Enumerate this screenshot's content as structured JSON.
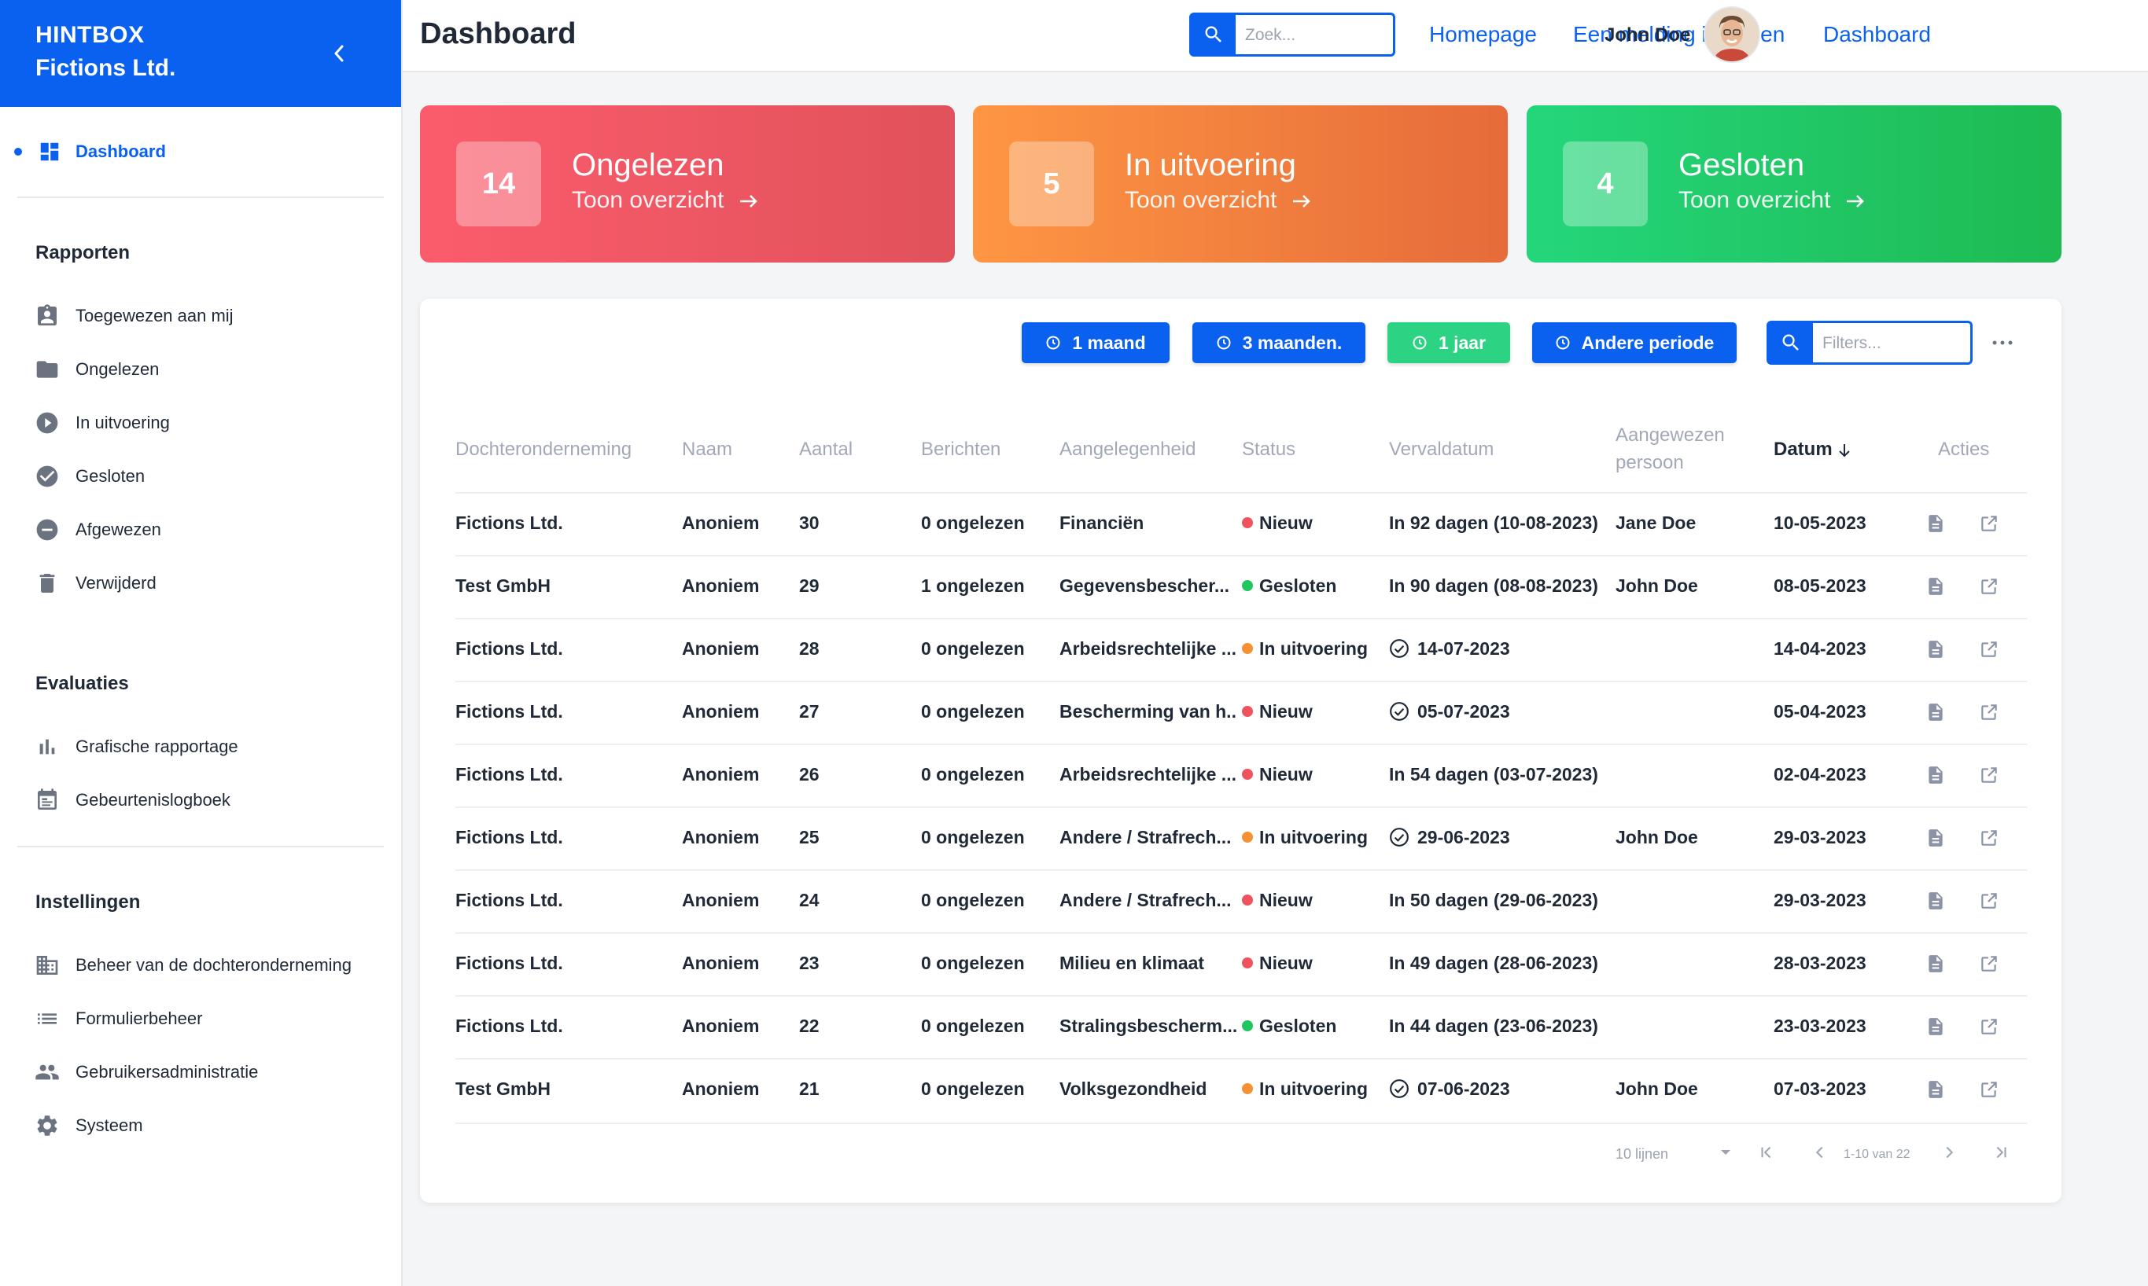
{
  "brand": {
    "line1": "HINTBOX",
    "line2": "Fictions Ltd."
  },
  "sidebar": {
    "dashboard_label": "Dashboard",
    "sections": [
      {
        "title": "Rapporten",
        "items": [
          {
            "label": "Toegewezen aan mij",
            "icon": "assignment-ind-icon"
          },
          {
            "label": "Ongelezen",
            "icon": "folder-open-icon"
          },
          {
            "label": "In uitvoering",
            "icon": "play-circle-icon"
          },
          {
            "label": "Gesloten",
            "icon": "check-circle-icon"
          },
          {
            "label": "Afgewezen",
            "icon": "minus-circle-icon"
          },
          {
            "label": "Verwijderd",
            "icon": "trash-icon"
          }
        ]
      },
      {
        "title": "Evaluaties",
        "items": [
          {
            "label": "Grafische rapportage",
            "icon": "bar-chart-icon"
          },
          {
            "label": "Gebeurtenislogboek",
            "icon": "calendar-icon"
          }
        ]
      },
      {
        "title": "Instellingen",
        "items": [
          {
            "label": "Beheer van de dochteronderneming",
            "icon": "building-icon"
          },
          {
            "label": "Formulierbeheer",
            "icon": "list-icon"
          },
          {
            "label": "Gebruikersadministratie",
            "icon": "people-icon"
          },
          {
            "label": "Systeem",
            "icon": "gear-icon"
          }
        ]
      }
    ]
  },
  "header": {
    "title": "Dashboard",
    "search_placeholder": "Zoek...",
    "links": [
      "Homepage",
      "Een melding indienen",
      "Dashboard"
    ],
    "user_name": "John Doe"
  },
  "cards": [
    {
      "count": "14",
      "title": "Ongelezen",
      "link": "Toon overzicht",
      "color": "#fb5c6c"
    },
    {
      "count": "5",
      "title": "In uitvoering",
      "link": "Toon overzicht",
      "color": "#fe9643"
    },
    {
      "count": "4",
      "title": "Gesloten",
      "link": "Toon overzicht",
      "color": "#24d67b"
    }
  ],
  "filters": {
    "periods": [
      "1 maand",
      "3 maanden.",
      "1 jaar",
      "Andere periode"
    ],
    "active_period": "1 jaar",
    "filter_placeholder": "Filters..."
  },
  "table": {
    "columns": [
      "Dochteronderneming",
      "Naam",
      "Aantal",
      "Berichten",
      "Aangelegenheid",
      "Status",
      "Vervaldatum",
      "Aangewezen",
      "persoon",
      "Datum",
      "Acties"
    ],
    "sorted_column": "Datum",
    "status_colors": {
      "Nieuw": "#f0525e",
      "Gesloten": "#22c55e",
      "In uitvoering": "#f59035"
    },
    "rows": [
      {
        "company": "Fictions Ltd.",
        "name": "Anoniem",
        "count": "30",
        "messages": "0 ongelezen",
        "matter": "Financiën",
        "status": "Nieuw",
        "due": "In 92 dagen (10-08-2023)",
        "due_done": false,
        "assignee": "Jane Doe",
        "date": "10-05-2023"
      },
      {
        "company": "Test GmbH",
        "name": "Anoniem",
        "count": "29",
        "messages": "1 ongelezen",
        "matter": "Gegevensbescher...",
        "status": "Gesloten",
        "due": "In 90 dagen (08-08-2023)",
        "due_done": false,
        "assignee": "John Doe",
        "date": "08-05-2023"
      },
      {
        "company": "Fictions Ltd.",
        "name": "Anoniem",
        "count": "28",
        "messages": "0 ongelezen",
        "matter": "Arbeidsrechtelijke ...",
        "status": "In uitvoering",
        "due": "14-07-2023",
        "due_done": true,
        "assignee": "",
        "date": "14-04-2023"
      },
      {
        "company": "Fictions Ltd.",
        "name": "Anoniem",
        "count": "27",
        "messages": "0 ongelezen",
        "matter": "Bescherming van h...",
        "status": "Nieuw",
        "due": "05-07-2023",
        "due_done": true,
        "assignee": "",
        "date": "05-04-2023"
      },
      {
        "company": "Fictions Ltd.",
        "name": "Anoniem",
        "count": "26",
        "messages": "0 ongelezen",
        "matter": "Arbeidsrechtelijke ...",
        "status": "Nieuw",
        "due": "In 54 dagen (03-07-2023)",
        "due_done": false,
        "assignee": "",
        "date": "02-04-2023"
      },
      {
        "company": "Fictions Ltd.",
        "name": "Anoniem",
        "count": "25",
        "messages": "0 ongelezen",
        "matter": "Andere / Strafrech...",
        "status": "In uitvoering",
        "due": "29-06-2023",
        "due_done": true,
        "assignee": "John Doe",
        "date": "29-03-2023"
      },
      {
        "company": "Fictions Ltd.",
        "name": "Anoniem",
        "count": "24",
        "messages": "0 ongelezen",
        "matter": "Andere / Strafrech...",
        "status": "Nieuw",
        "due": "In 50 dagen (29-06-2023)",
        "due_done": false,
        "assignee": "",
        "date": "29-03-2023"
      },
      {
        "company": "Fictions Ltd.",
        "name": "Anoniem",
        "count": "23",
        "messages": "0 ongelezen",
        "matter": "Milieu en klimaat",
        "status": "Nieuw",
        "due": "In 49 dagen (28-06-2023)",
        "due_done": false,
        "assignee": "",
        "date": "28-03-2023"
      },
      {
        "company": "Fictions Ltd.",
        "name": "Anoniem",
        "count": "22",
        "messages": "0 ongelezen",
        "matter": "Stralingsbescherm...",
        "status": "Gesloten",
        "due": "In 44 dagen (23-06-2023)",
        "due_done": false,
        "assignee": "",
        "date": "23-03-2023"
      },
      {
        "company": "Test GmbH",
        "name": "Anoniem",
        "count": "21",
        "messages": "0 ongelezen",
        "matter": "Volksgezondheid",
        "status": "In uitvoering",
        "due": "07-06-2023",
        "due_done": true,
        "assignee": "John Doe",
        "date": "07-03-2023"
      }
    ]
  },
  "pagination": {
    "rows_per_page": "10 lijnen",
    "range": "1-10 van 22"
  }
}
